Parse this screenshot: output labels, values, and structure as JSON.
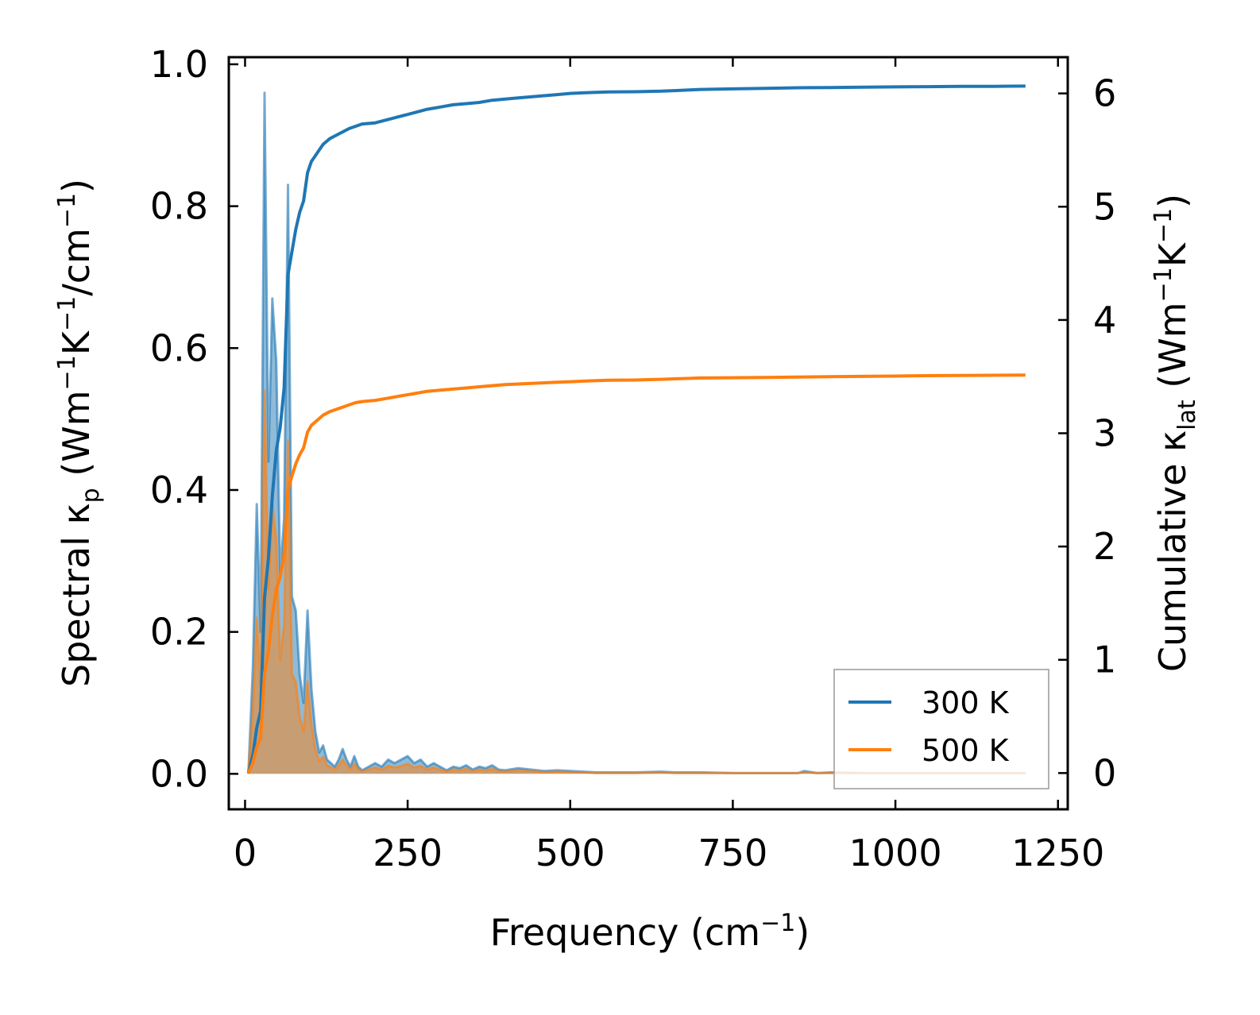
{
  "chart_data": {
    "type": "line",
    "xlabel": "Frequency (cm⁻¹)",
    "ylabel_left": "Spectral κₚ (Wm⁻¹K⁻¹/cm⁻¹)",
    "ylabel_right": "Cumulative κₗₐₜ (Wm⁻¹K⁻¹)",
    "xlim": [
      -25,
      1265
    ],
    "ylim_left": [
      -0.05,
      1.01
    ],
    "ylim_right": [
      -0.32,
      6.32
    ],
    "xticks": [
      0,
      250,
      500,
      750,
      1000,
      1250
    ],
    "xtick_labels": [
      "0",
      "250",
      "500",
      "750",
      "1000",
      "1250"
    ],
    "yticks_left": [
      0.0,
      0.2,
      0.4,
      0.6,
      0.8,
      1.0
    ],
    "ytick_labels_left": [
      "0.0",
      "0.2",
      "0.4",
      "0.6",
      "0.8",
      "1.0"
    ],
    "yticks_right": [
      0,
      1,
      2,
      3,
      4,
      5,
      6
    ],
    "ytick_labels_right": [
      "0",
      "1",
      "2",
      "3",
      "4",
      "5",
      "6"
    ],
    "legend": {
      "position": "lower-right",
      "entries": [
        "300 K",
        "500 K"
      ]
    },
    "spectral_series": [
      {
        "name": "300 K spectral",
        "color": "#1f77b4",
        "x": [
          5,
          12,
          18,
          24,
          30,
          36,
          42,
          48,
          54,
          60,
          66,
          72,
          78,
          84,
          90,
          96,
          102,
          108,
          114,
          120,
          126,
          132,
          138,
          144,
          150,
          156,
          162,
          168,
          174,
          180,
          190,
          200,
          210,
          220,
          230,
          240,
          250,
          260,
          270,
          280,
          290,
          300,
          310,
          320,
          330,
          340,
          350,
          360,
          370,
          380,
          390,
          400,
          420,
          440,
          460,
          480,
          500,
          520,
          540,
          560,
          600,
          640,
          660,
          680,
          700,
          750,
          800,
          850,
          860,
          880,
          900,
          950,
          1000,
          1050,
          1100,
          1150,
          1200
        ],
        "y": [
          0.0,
          0.15,
          0.38,
          0.2,
          0.96,
          0.44,
          0.67,
          0.58,
          0.28,
          0.36,
          0.83,
          0.25,
          0.23,
          0.14,
          0.1,
          0.23,
          0.12,
          0.06,
          0.03,
          0.04,
          0.02,
          0.015,
          0.01,
          0.02,
          0.035,
          0.02,
          0.01,
          0.025,
          0.01,
          0.005,
          0.01,
          0.015,
          0.01,
          0.02,
          0.015,
          0.02,
          0.025,
          0.015,
          0.02,
          0.01,
          0.015,
          0.01,
          0.005,
          0.01,
          0.008,
          0.012,
          0.006,
          0.01,
          0.008,
          0.012,
          0.006,
          0.005,
          0.008,
          0.006,
          0.004,
          0.005,
          0.004,
          0.003,
          0.002,
          0.002,
          0.002,
          0.003,
          0.002,
          0.002,
          0.002,
          0.001,
          0.001,
          0.001,
          0.004,
          0.001,
          0.002,
          0.001,
          0.001,
          0.001,
          0.001,
          0.001,
          0.001
        ]
      },
      {
        "name": "500 K spectral",
        "color": "#ff7f0e",
        "x": [
          5,
          12,
          18,
          24,
          30,
          36,
          42,
          48,
          54,
          60,
          66,
          72,
          78,
          84,
          90,
          96,
          102,
          108,
          114,
          120,
          126,
          132,
          138,
          144,
          150,
          156,
          162,
          168,
          174,
          180,
          190,
          200,
          210,
          220,
          230,
          240,
          250,
          260,
          270,
          280,
          290,
          300,
          310,
          320,
          330,
          340,
          350,
          360,
          370,
          380,
          390,
          400,
          420,
          440,
          460,
          480,
          500,
          520,
          540,
          560,
          600,
          640,
          660,
          680,
          700,
          750,
          800,
          850,
          860,
          880,
          900,
          950,
          1000,
          1050,
          1100,
          1150,
          1200
        ],
        "y": [
          0.0,
          0.09,
          0.22,
          0.12,
          0.54,
          0.26,
          0.38,
          0.33,
          0.16,
          0.21,
          0.47,
          0.14,
          0.13,
          0.08,
          0.06,
          0.13,
          0.07,
          0.035,
          0.018,
          0.024,
          0.012,
          0.009,
          0.006,
          0.012,
          0.02,
          0.012,
          0.006,
          0.014,
          0.006,
          0.003,
          0.006,
          0.009,
          0.006,
          0.011,
          0.009,
          0.011,
          0.014,
          0.009,
          0.011,
          0.006,
          0.009,
          0.006,
          0.003,
          0.006,
          0.005,
          0.007,
          0.004,
          0.006,
          0.005,
          0.007,
          0.004,
          0.003,
          0.005,
          0.004,
          0.002,
          0.003,
          0.002,
          0.002,
          0.001,
          0.001,
          0.001,
          0.002,
          0.001,
          0.001,
          0.001,
          0.001,
          0.001,
          0.001,
          0.002,
          0.001,
          0.001,
          0.001,
          0.001,
          0.001,
          0.001,
          0.001,
          0.001
        ]
      }
    ],
    "cumulative_series": [
      {
        "name": "300 K",
        "color": "#1f77b4",
        "x": [
          5,
          12,
          18,
          24,
          30,
          36,
          42,
          48,
          54,
          60,
          66,
          72,
          78,
          84,
          90,
          96,
          102,
          108,
          114,
          120,
          130,
          140,
          150,
          160,
          170,
          180,
          200,
          220,
          240,
          260,
          280,
          300,
          320,
          340,
          360,
          380,
          400,
          420,
          440,
          460,
          480,
          500,
          520,
          540,
          560,
          600,
          620,
          640,
          660,
          680,
          700,
          750,
          800,
          850,
          900,
          950,
          1000,
          1050,
          1100,
          1150,
          1200
        ],
        "y": [
          0.0,
          0.16,
          0.4,
          0.55,
          1.55,
          1.9,
          2.45,
          2.85,
          3.05,
          3.4,
          4.4,
          4.6,
          4.8,
          4.95,
          5.05,
          5.3,
          5.4,
          5.45,
          5.5,
          5.55,
          5.6,
          5.63,
          5.66,
          5.69,
          5.71,
          5.73,
          5.74,
          5.77,
          5.8,
          5.83,
          5.86,
          5.88,
          5.9,
          5.91,
          5.92,
          5.94,
          5.95,
          5.96,
          5.97,
          5.98,
          5.99,
          6.0,
          6.005,
          6.01,
          6.013,
          6.015,
          6.018,
          6.02,
          6.025,
          6.03,
          6.035,
          6.04,
          6.045,
          6.05,
          6.052,
          6.055,
          6.058,
          6.06,
          6.062,
          6.063,
          6.065
        ]
      },
      {
        "name": "500 K",
        "color": "#ff7f0e",
        "x": [
          5,
          12,
          18,
          24,
          30,
          36,
          42,
          48,
          54,
          60,
          66,
          72,
          78,
          84,
          90,
          96,
          102,
          108,
          114,
          120,
          130,
          140,
          150,
          160,
          170,
          180,
          200,
          220,
          240,
          260,
          280,
          300,
          320,
          340,
          360,
          380,
          400,
          420,
          440,
          460,
          480,
          500,
          520,
          540,
          560,
          600,
          620,
          640,
          660,
          680,
          700,
          750,
          800,
          850,
          900,
          950,
          1000,
          1050,
          1100,
          1150,
          1200
        ],
        "y": [
          0.0,
          0.09,
          0.23,
          0.31,
          0.88,
          1.08,
          1.39,
          1.62,
          1.73,
          1.93,
          2.5,
          2.62,
          2.73,
          2.81,
          2.87,
          3.01,
          3.07,
          3.1,
          3.13,
          3.16,
          3.19,
          3.21,
          3.23,
          3.25,
          3.27,
          3.28,
          3.29,
          3.31,
          3.33,
          3.35,
          3.37,
          3.38,
          3.39,
          3.4,
          3.41,
          3.42,
          3.43,
          3.435,
          3.44,
          3.445,
          3.45,
          3.455,
          3.46,
          3.465,
          3.468,
          3.47,
          3.473,
          3.476,
          3.48,
          3.484,
          3.488,
          3.49,
          3.493,
          3.496,
          3.499,
          3.502,
          3.505,
          3.508,
          3.51,
          3.512,
          3.514
        ]
      }
    ]
  }
}
